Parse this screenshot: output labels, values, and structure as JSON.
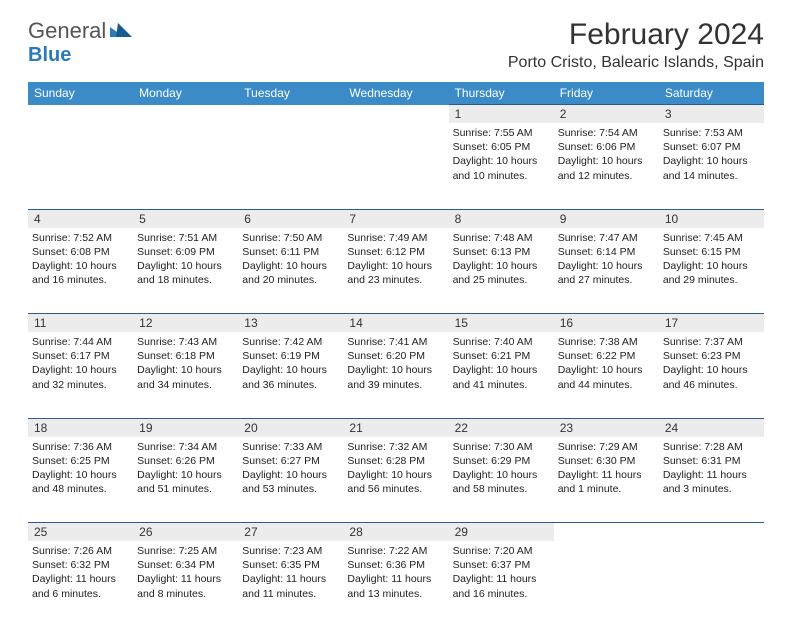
{
  "logo": {
    "text1": "General",
    "text2": "Blue"
  },
  "title": "February 2024",
  "location": "Porto Cristo, Balearic Islands, Spain",
  "colors": {
    "header_bg": "#3b8bc9",
    "border": "#2c5a8a",
    "daynum_bg": "#ececec"
  },
  "weekdays": [
    "Sunday",
    "Monday",
    "Tuesday",
    "Wednesday",
    "Thursday",
    "Friday",
    "Saturday"
  ],
  "weeks": [
    [
      null,
      null,
      null,
      null,
      {
        "n": "1",
        "sr": "7:55 AM",
        "ss": "6:05 PM",
        "d": "10 hours and 10 minutes."
      },
      {
        "n": "2",
        "sr": "7:54 AM",
        "ss": "6:06 PM",
        "d": "10 hours and 12 minutes."
      },
      {
        "n": "3",
        "sr": "7:53 AM",
        "ss": "6:07 PM",
        "d": "10 hours and 14 minutes."
      }
    ],
    [
      {
        "n": "4",
        "sr": "7:52 AM",
        "ss": "6:08 PM",
        "d": "10 hours and 16 minutes."
      },
      {
        "n": "5",
        "sr": "7:51 AM",
        "ss": "6:09 PM",
        "d": "10 hours and 18 minutes."
      },
      {
        "n": "6",
        "sr": "7:50 AM",
        "ss": "6:11 PM",
        "d": "10 hours and 20 minutes."
      },
      {
        "n": "7",
        "sr": "7:49 AM",
        "ss": "6:12 PM",
        "d": "10 hours and 23 minutes."
      },
      {
        "n": "8",
        "sr": "7:48 AM",
        "ss": "6:13 PM",
        "d": "10 hours and 25 minutes."
      },
      {
        "n": "9",
        "sr": "7:47 AM",
        "ss": "6:14 PM",
        "d": "10 hours and 27 minutes."
      },
      {
        "n": "10",
        "sr": "7:45 AM",
        "ss": "6:15 PM",
        "d": "10 hours and 29 minutes."
      }
    ],
    [
      {
        "n": "11",
        "sr": "7:44 AM",
        "ss": "6:17 PM",
        "d": "10 hours and 32 minutes."
      },
      {
        "n": "12",
        "sr": "7:43 AM",
        "ss": "6:18 PM",
        "d": "10 hours and 34 minutes."
      },
      {
        "n": "13",
        "sr": "7:42 AM",
        "ss": "6:19 PM",
        "d": "10 hours and 36 minutes."
      },
      {
        "n": "14",
        "sr": "7:41 AM",
        "ss": "6:20 PM",
        "d": "10 hours and 39 minutes."
      },
      {
        "n": "15",
        "sr": "7:40 AM",
        "ss": "6:21 PM",
        "d": "10 hours and 41 minutes."
      },
      {
        "n": "16",
        "sr": "7:38 AM",
        "ss": "6:22 PM",
        "d": "10 hours and 44 minutes."
      },
      {
        "n": "17",
        "sr": "7:37 AM",
        "ss": "6:23 PM",
        "d": "10 hours and 46 minutes."
      }
    ],
    [
      {
        "n": "18",
        "sr": "7:36 AM",
        "ss": "6:25 PM",
        "d": "10 hours and 48 minutes."
      },
      {
        "n": "19",
        "sr": "7:34 AM",
        "ss": "6:26 PM",
        "d": "10 hours and 51 minutes."
      },
      {
        "n": "20",
        "sr": "7:33 AM",
        "ss": "6:27 PM",
        "d": "10 hours and 53 minutes."
      },
      {
        "n": "21",
        "sr": "7:32 AM",
        "ss": "6:28 PM",
        "d": "10 hours and 56 minutes."
      },
      {
        "n": "22",
        "sr": "7:30 AM",
        "ss": "6:29 PM",
        "d": "10 hours and 58 minutes."
      },
      {
        "n": "23",
        "sr": "7:29 AM",
        "ss": "6:30 PM",
        "d": "11 hours and 1 minute."
      },
      {
        "n": "24",
        "sr": "7:28 AM",
        "ss": "6:31 PM",
        "d": "11 hours and 3 minutes."
      }
    ],
    [
      {
        "n": "25",
        "sr": "7:26 AM",
        "ss": "6:32 PM",
        "d": "11 hours and 6 minutes."
      },
      {
        "n": "26",
        "sr": "7:25 AM",
        "ss": "6:34 PM",
        "d": "11 hours and 8 minutes."
      },
      {
        "n": "27",
        "sr": "7:23 AM",
        "ss": "6:35 PM",
        "d": "11 hours and 11 minutes."
      },
      {
        "n": "28",
        "sr": "7:22 AM",
        "ss": "6:36 PM",
        "d": "11 hours and 13 minutes."
      },
      {
        "n": "29",
        "sr": "7:20 AM",
        "ss": "6:37 PM",
        "d": "11 hours and 16 minutes."
      },
      null,
      null
    ]
  ]
}
